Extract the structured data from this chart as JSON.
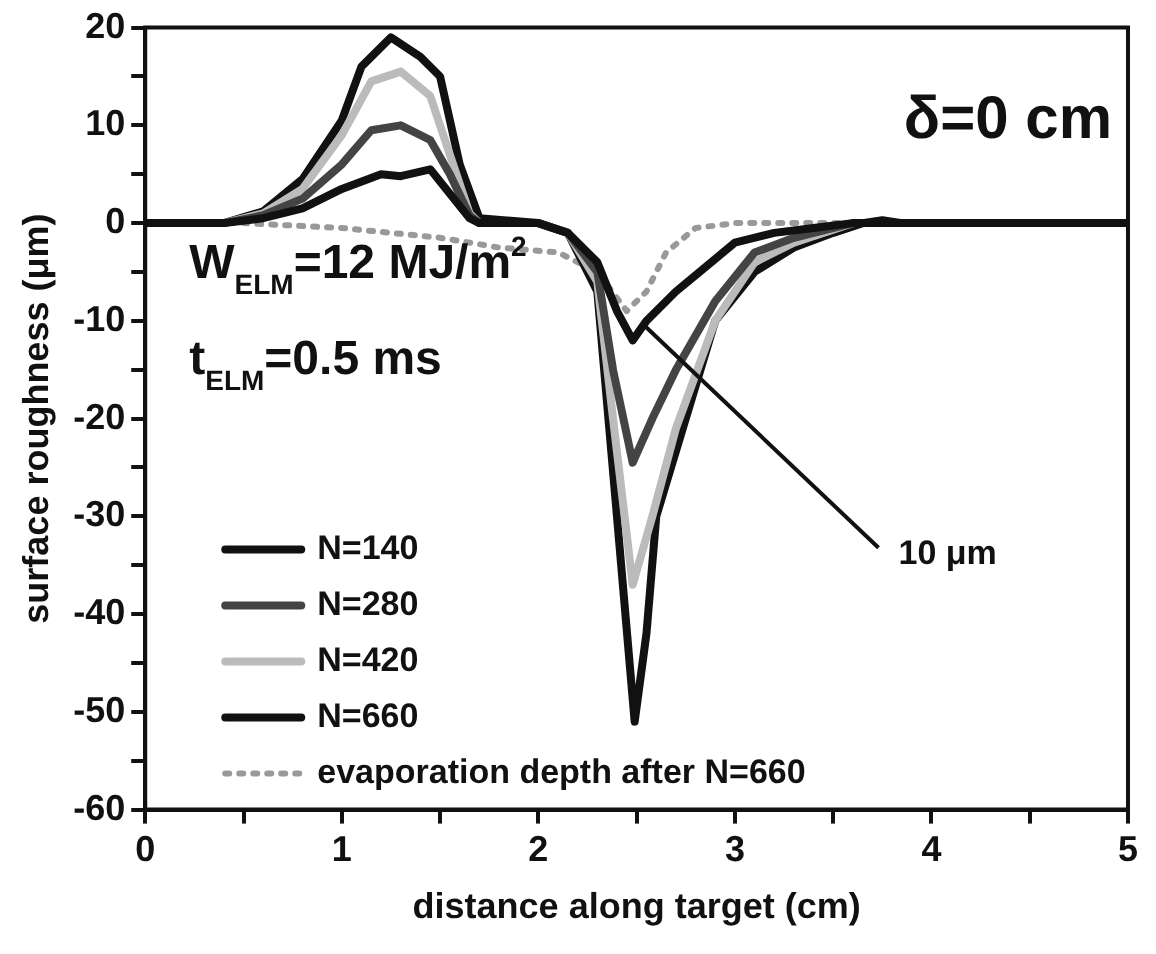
{
  "chart_data": {
    "type": "line",
    "xlabel": "distance along target (cm)",
    "ylabel": "surface roughness (μm)",
    "xlim": [
      0,
      5
    ],
    "xticks": [
      0,
      {
        "value": 0.5,
        "label": null
      },
      1,
      {
        "value": 1.5,
        "label": null
      },
      2,
      {
        "value": 2.5,
        "label": null
      },
      3,
      {
        "value": 3.5,
        "label": null
      },
      4,
      {
        "value": 4.5,
        "label": null
      },
      5
    ],
    "ylim": [
      -60,
      20
    ],
    "yticks": [
      -60,
      {
        "value": -55,
        "label": null
      },
      -50,
      {
        "value": -45,
        "label": null
      },
      -40,
      {
        "value": -35,
        "label": null
      },
      -30,
      {
        "value": -25,
        "label": null
      },
      -20,
      {
        "value": -15,
        "label": null
      },
      -10,
      {
        "value": -5,
        "label": null
      },
      0,
      {
        "value": 5,
        "label": null
      },
      10,
      {
        "value": 15,
        "label": null
      },
      20
    ],
    "grid": false,
    "legend": "bottom left",
    "marker": "none",
    "annotations": [
      "δ=0 cm",
      "W$_{ELM}$=12 MJ/m$^{2}$",
      "t$_{ELM}$=0.5 ms",
      {
        "text": "10 μm",
        "x": 2.53,
        "y": -10.3
      }
    ],
    "series": [
      {
        "name": "N=140",
        "color": "#111111",
        "line_style": "solid",
        "x": [
          0,
          0.4,
          0.6,
          0.8,
          1.0,
          1.2,
          1.3,
          1.45,
          1.55,
          1.65,
          1.7,
          2.0,
          2.15,
          2.3,
          2.4,
          2.48,
          2.55,
          2.7,
          2.85,
          3.0,
          3.2,
          3.4,
          3.6,
          5
        ],
        "values": [
          0,
          0,
          0.5,
          1.5,
          3.5,
          5,
          4.8,
          5.5,
          3,
          0.5,
          0,
          0,
          -1,
          -4,
          -9,
          -12,
          -10,
          -7,
          -4.5,
          -2,
          -1,
          -0.5,
          0,
          0
        ]
      },
      {
        "name": "N=280",
        "color": "#444444",
        "line_style": "solid",
        "x": [
          0,
          0.4,
          0.6,
          0.8,
          1.0,
          1.15,
          1.3,
          1.45,
          1.55,
          1.65,
          1.7,
          2.0,
          2.15,
          2.3,
          2.38,
          2.48,
          2.58,
          2.7,
          2.9,
          3.1,
          3.3,
          3.6,
          5
        ],
        "values": [
          0,
          0,
          0.8,
          2.5,
          6,
          9.5,
          10,
          8.5,
          5,
          0.8,
          0,
          0,
          -1,
          -5,
          -15,
          -24.5,
          -20,
          -15,
          -8,
          -3,
          -1.5,
          0,
          0
        ]
      },
      {
        "name": "N=420",
        "color": "#bbbbbb",
        "line_style": "solid",
        "x": [
          0,
          0.4,
          0.6,
          0.8,
          1.0,
          1.15,
          1.3,
          1.45,
          1.55,
          1.65,
          1.7,
          2.0,
          2.15,
          2.3,
          2.38,
          2.48,
          2.58,
          2.7,
          2.9,
          3.1,
          3.3,
          3.6,
          5
        ],
        "values": [
          0,
          0,
          1,
          3.5,
          9,
          14.5,
          15.5,
          13,
          7,
          1,
          0,
          0,
          -1,
          -6,
          -20,
          -37,
          -30,
          -21,
          -10,
          -4,
          -2,
          0,
          0
        ]
      },
      {
        "name": "N=660",
        "color": "#111111",
        "line_style": "solid",
        "x": [
          0,
          0.4,
          0.6,
          0.8,
          1.0,
          1.1,
          1.25,
          1.4,
          1.5,
          1.6,
          1.7,
          2.0,
          2.15,
          2.3,
          2.4,
          2.49,
          2.55,
          2.6,
          2.75,
          2.9,
          3.1,
          3.3,
          3.5,
          3.65,
          3.75,
          3.85,
          5
        ],
        "values": [
          0,
          0,
          1.2,
          4.5,
          10.5,
          16,
          19,
          17,
          15,
          6,
          0.5,
          0,
          -1,
          -7,
          -30,
          -51,
          -42,
          -30,
          -20,
          -10,
          -5,
          -2.5,
          -1,
          0,
          0.3,
          0,
          0
        ]
      },
      {
        "name": "evaporation depth after N=660",
        "color": "#999999",
        "line_style": "dotted",
        "x": [
          0,
          0.5,
          1.0,
          1.5,
          1.8,
          2.1,
          2.3,
          2.45,
          2.55,
          2.65,
          2.8,
          3.0,
          5
        ],
        "values": [
          0,
          0,
          -0.5,
          -1.5,
          -2.5,
          -3,
          -5,
          -9,
          -7,
          -3,
          -0.5,
          0,
          0
        ]
      }
    ]
  }
}
